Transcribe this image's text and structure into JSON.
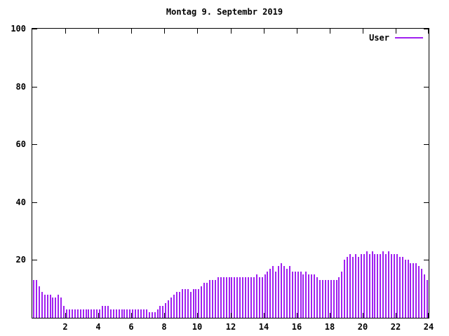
{
  "chart_data": {
    "type": "bar",
    "title": "Montag 9. Septembr 2019",
    "series_name": "User",
    "bar_color": "#a020f0",
    "xlabel": "",
    "ylabel": "",
    "xlim": [
      0,
      24
    ],
    "ylim": [
      0,
      100
    ],
    "xticks": [
      2,
      4,
      6,
      8,
      10,
      12,
      14,
      16,
      18,
      20,
      22,
      24
    ],
    "yticks": [
      20,
      40,
      60,
      80,
      100
    ],
    "legend_position": "top-right",
    "grid": false,
    "x_unit": "hour-of-day",
    "sample_interval_minutes": 10,
    "values": [
      13,
      13,
      11,
      9,
      8,
      8,
      8,
      7,
      7,
      8,
      7,
      4,
      3,
      3,
      3,
      3,
      3,
      3,
      3,
      3,
      3,
      3,
      3,
      3,
      3,
      4,
      4,
      4,
      3,
      3,
      3,
      3,
      3,
      3,
      3,
      3,
      3,
      3,
      3,
      3,
      3,
      3,
      2,
      2,
      2,
      3,
      4,
      4,
      5,
      6,
      7,
      8,
      9,
      9,
      10,
      10,
      10,
      9,
      10,
      10,
      10,
      11,
      12,
      12,
      13,
      13,
      13,
      14,
      14,
      14,
      14,
      14,
      14,
      14,
      14,
      14,
      14,
      14,
      14,
      14,
      14,
      15,
      14,
      14,
      15,
      16,
      17,
      18,
      16,
      18,
      19,
      18,
      17,
      18,
      16,
      16,
      16,
      16,
      15,
      16,
      15,
      15,
      15,
      14,
      13,
      13,
      13,
      13,
      13,
      13,
      13,
      14,
      16,
      20,
      21,
      22,
      21,
      22,
      21,
      22,
      22,
      23,
      22,
      23,
      22,
      22,
      22,
      23,
      22,
      23,
      22,
      22,
      22,
      21,
      21,
      20,
      20,
      19,
      19,
      19,
      18,
      17,
      15,
      13
    ]
  }
}
